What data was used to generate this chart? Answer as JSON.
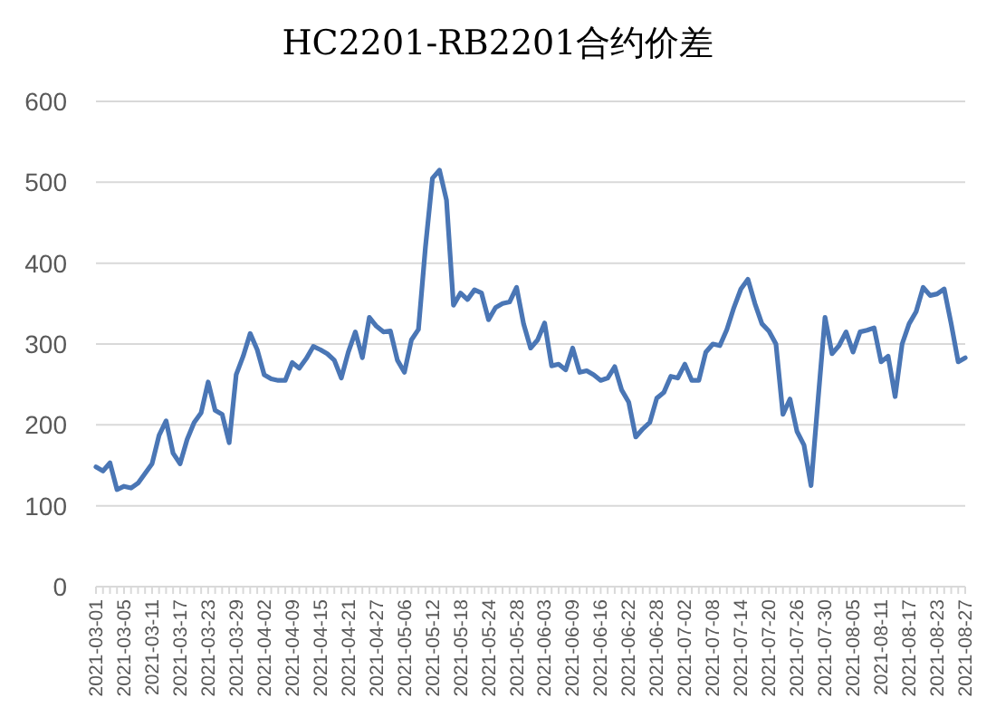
{
  "chart_data": {
    "type": "line",
    "title": "HC2201-RB2201合约价差",
    "categories": [
      "2021-03-01",
      null,
      null,
      null,
      "2021-03-05",
      null,
      null,
      null,
      "2021-03-11",
      null,
      null,
      null,
      "2021-03-17",
      null,
      null,
      null,
      "2021-03-23",
      null,
      null,
      null,
      "2021-03-29",
      null,
      null,
      null,
      "2021-04-02",
      null,
      null,
      null,
      "2021-04-09",
      null,
      null,
      null,
      "2021-04-15",
      null,
      null,
      null,
      "2021-04-21",
      null,
      null,
      null,
      "2021-04-27",
      null,
      null,
      null,
      "2021-05-06",
      null,
      null,
      null,
      "2021-05-12",
      null,
      null,
      null,
      "2021-05-18",
      null,
      null,
      null,
      "2021-05-24",
      null,
      null,
      null,
      "2021-05-28",
      null,
      null,
      null,
      "2021-06-03",
      null,
      null,
      null,
      "2021-06-09",
      null,
      null,
      null,
      "2021-06-16",
      null,
      null,
      null,
      "2021-06-22",
      null,
      null,
      null,
      "2021-06-28",
      null,
      null,
      null,
      "2021-07-02",
      null,
      null,
      null,
      "2021-07-08",
      null,
      null,
      null,
      "2021-07-14",
      null,
      null,
      null,
      "2021-07-20",
      null,
      null,
      null,
      "2021-07-26",
      null,
      null,
      null,
      "2021-07-30",
      null,
      null,
      null,
      "2021-08-05",
      null,
      null,
      null,
      "2021-08-11",
      null,
      null,
      null,
      "2021-08-17",
      null,
      null,
      null,
      "2021-08-23",
      null,
      null,
      null,
      "2021-08-27"
    ],
    "values": [
      148,
      143,
      153,
      120,
      124,
      122,
      128,
      140,
      152,
      187,
      205,
      165,
      152,
      182,
      203,
      215,
      253,
      218,
      213,
      178,
      262,
      285,
      313,
      293,
      262,
      257,
      255,
      255,
      277,
      270,
      282,
      297,
      293,
      288,
      280,
      258,
      290,
      315,
      283,
      333,
      322,
      315,
      316,
      280,
      265,
      305,
      318,
      420,
      505,
      515,
      478,
      348,
      363,
      355,
      367,
      363,
      330,
      345,
      350,
      352,
      370,
      325,
      295,
      305,
      326,
      273,
      275,
      268,
      295,
      265,
      267,
      262,
      255,
      258,
      272,
      243,
      228,
      185,
      195,
      203,
      233,
      240,
      260,
      258,
      275,
      255,
      255,
      290,
      300,
      298,
      318,
      345,
      368,
      380,
      350,
      325,
      316,
      300,
      213,
      232,
      192,
      175,
      125,
      230,
      333,
      288,
      298,
      315,
      290,
      315,
      317,
      320,
      278,
      285,
      235,
      300,
      325,
      340,
      370,
      360,
      362,
      368,
      325,
      278,
      283
    ],
    "color": "#4a76b5",
    "ylim": [
      0,
      600
    ],
    "yticks": [
      0,
      100,
      200,
      300,
      400,
      500,
      600
    ],
    "grid": "y"
  }
}
